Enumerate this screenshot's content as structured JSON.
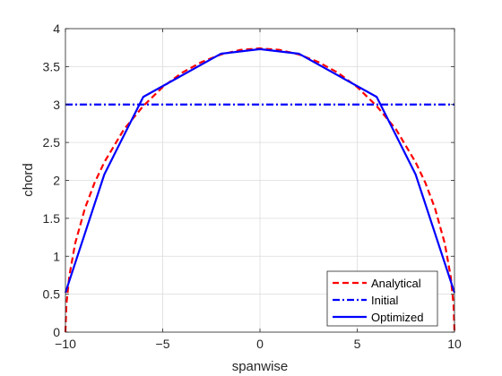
{
  "chart_data": {
    "type": "line",
    "title": "",
    "xlabel": "spanwise",
    "ylabel": "chord",
    "xlim": [
      -10,
      10
    ],
    "ylim": [
      0,
      4
    ],
    "xticks": [
      -10,
      -5,
      0,
      5,
      10
    ],
    "xtick_labels": [
      "−10",
      "−5",
      "0",
      "5",
      "10"
    ],
    "yticks": [
      0,
      0.5,
      1,
      1.5,
      2,
      2.5,
      3,
      3.5,
      4
    ],
    "ytick_labels": [
      "0",
      "0.5",
      "1",
      "1.5",
      "2",
      "2.5",
      "3",
      "3.5",
      "4"
    ],
    "grid": true,
    "legend_position": "bottom-right",
    "series": [
      {
        "name": "Analytical",
        "color": "#ff0000",
        "style": "dashed",
        "x": [
          -10,
          -9.95,
          -9.8,
          -9.5,
          -9,
          -8.5,
          -8,
          -7,
          -6,
          -5,
          -4,
          -3,
          -2,
          -1,
          0,
          1,
          2,
          3,
          4,
          5,
          6,
          7,
          8,
          8.5,
          9,
          9.5,
          9.8,
          9.95,
          10
        ],
        "y": [
          0,
          0.37,
          0.74,
          1.17,
          1.63,
          1.97,
          2.24,
          2.67,
          2.98,
          3.23,
          3.42,
          3.56,
          3.66,
          3.72,
          3.74,
          3.72,
          3.66,
          3.56,
          3.42,
          3.23,
          2.98,
          2.67,
          2.24,
          1.97,
          1.63,
          1.17,
          0.74,
          0.37,
          0
        ]
      },
      {
        "name": "Initial",
        "color": "#0000ff",
        "style": "dashdot",
        "x": [
          -10,
          10
        ],
        "y": [
          3,
          3
        ]
      },
      {
        "name": "Optimized",
        "color": "#0000ff",
        "style": "solid",
        "x": [
          -10,
          -8,
          -6,
          -2,
          0,
          2,
          6,
          8,
          10
        ],
        "y": [
          0.52,
          2.08,
          3.1,
          3.67,
          3.73,
          3.67,
          3.1,
          2.08,
          0.52
        ]
      }
    ]
  }
}
